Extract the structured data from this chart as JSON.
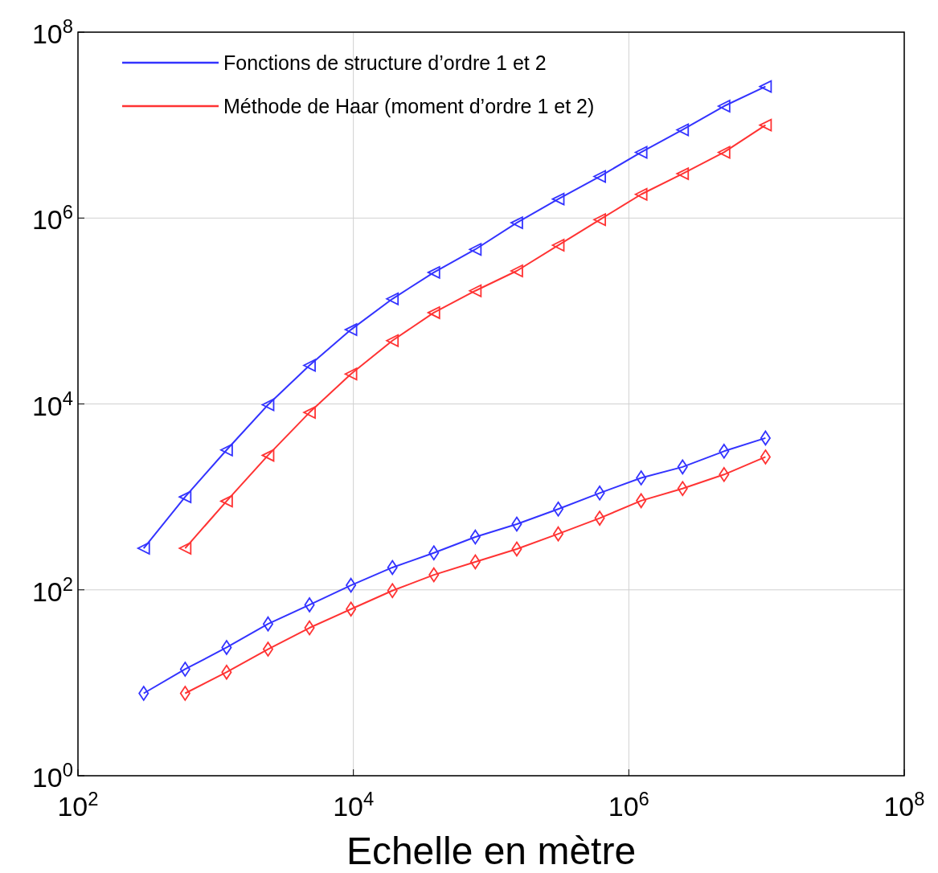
{
  "chart_data": {
    "type": "line",
    "xlabel": "Echelle en mètre",
    "log": "xy",
    "grid": true,
    "legend": "top left",
    "xlim": [
      100,
      100000000
    ],
    "ylim": [
      1,
      100000000
    ],
    "xticks": [
      {
        "value": 100,
        "label": "10$^{2}$"
      },
      {
        "value": 10000,
        "label": "10$^{4}$"
      },
      {
        "value": 1000000,
        "label": "10$^{6}$"
      },
      {
        "value": 100000000,
        "label": "10$^{8}$"
      }
    ],
    "yticks": [
      {
        "value": 1,
        "label": "10$^{0}$"
      },
      {
        "value": 100,
        "label": "10$^{2}$"
      },
      {
        "value": 10000,
        "label": "10$^{4}$"
      },
      {
        "value": 1000000,
        "label": "10$^{6}$"
      },
      {
        "value": 100000000,
        "label": "10$^{8}$"
      }
    ],
    "series": [
      {
        "name": "Fonctions de structure d’ordre 1 et 2",
        "color": "#3333ff",
        "marker": "triangle",
        "x": [
          300,
          600,
          1200,
          2400,
          4800,
          9600,
          19200,
          38400,
          76800,
          153600,
          307200,
          614400,
          1228800,
          2457600,
          4915200,
          9830400
        ],
        "values": [
          280,
          1000,
          3200,
          9800,
          26000,
          63000,
          135000,
          260000,
          460000,
          890000,
          1600000,
          2800000,
          5100000,
          8900000,
          16000000,
          26000000
        ]
      },
      {
        "name": "Méthode de Haar (moment d’ordre 1 et 2)",
        "color": "#ff3333",
        "marker": "triangle",
        "x": [
          600,
          1200,
          2400,
          4800,
          9600,
          19200,
          38400,
          76800,
          153600,
          307200,
          614400,
          1228800,
          2457600,
          4915200,
          9830400
        ],
        "values": [
          280,
          900,
          2800,
          8100,
          21000,
          48000,
          96000,
          165000,
          270000,
          510000,
          960000,
          1800000,
          3000000,
          5100000,
          10000000
        ]
      },
      {
        "color": "#3333ff",
        "marker": "diamond",
        "x": [
          300,
          600,
          1200,
          2400,
          4800,
          9600,
          19200,
          38400,
          76800,
          153600,
          307200,
          614400,
          1228800,
          2457600,
          4915200,
          9830400
        ],
        "values": [
          7.7,
          14,
          24,
          43,
          69,
          112,
          174,
          250,
          370,
          510,
          740,
          1100,
          1600,
          2100,
          3100,
          4300
        ]
      },
      {
        "color": "#ff3333",
        "marker": "diamond",
        "x": [
          600,
          1200,
          2400,
          4800,
          9600,
          19200,
          38400,
          76800,
          153600,
          307200,
          614400,
          1228800,
          2457600,
          4915200,
          9830400
        ],
        "values": [
          7.7,
          13,
          23,
          39,
          62,
          98,
          145,
          200,
          275,
          400,
          590,
          910,
          1230,
          1740,
          2690
        ]
      }
    ]
  }
}
